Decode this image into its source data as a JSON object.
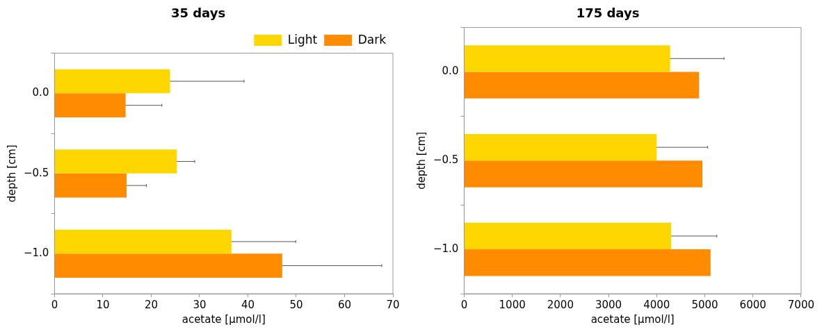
{
  "chart_data": [
    {
      "type": "bar",
      "orientation": "horizontal",
      "title": "35 days",
      "xlabel": "acetate [µmol/l]",
      "ylabel": "depth [cm]",
      "categories": [
        "0.0",
        "−0.5",
        "−1.0"
      ],
      "series": [
        {
          "name": "Light",
          "color": "#ffd700",
          "values": [
            23.9,
            25.3,
            36.6
          ],
          "errors": [
            15.3,
            3.7,
            13.3
          ]
        },
        {
          "name": "Dark",
          "color": "#ff8c00",
          "values": [
            14.7,
            14.9,
            47.1
          ],
          "errors": [
            7.5,
            4.1,
            20.6
          ]
        }
      ],
      "xlim": [
        0,
        70
      ],
      "xticks": [
        0,
        10,
        20,
        30,
        40,
        50,
        60,
        70
      ],
      "grid": false,
      "legend": "top right"
    },
    {
      "type": "bar",
      "orientation": "horizontal",
      "title": "175 days",
      "xlabel": "acetate [µmol/l]",
      "ylabel": "depth [cm]",
      "categories": [
        "0.0",
        "−0.5",
        "−1.0"
      ],
      "series": [
        {
          "color": "#ffd700",
          "values": [
            4280,
            4000,
            4300
          ],
          "errors": [
            1120,
            1060,
            950
          ]
        },
        {
          "color": "#ff8c00",
          "values": [
            4880,
            4950,
            5120
          ]
        }
      ],
      "xlim": [
        0,
        7000
      ],
      "xticks": [
        0,
        1000,
        2000,
        3000,
        4000,
        5000,
        6000,
        7000
      ],
      "grid": false
    }
  ]
}
